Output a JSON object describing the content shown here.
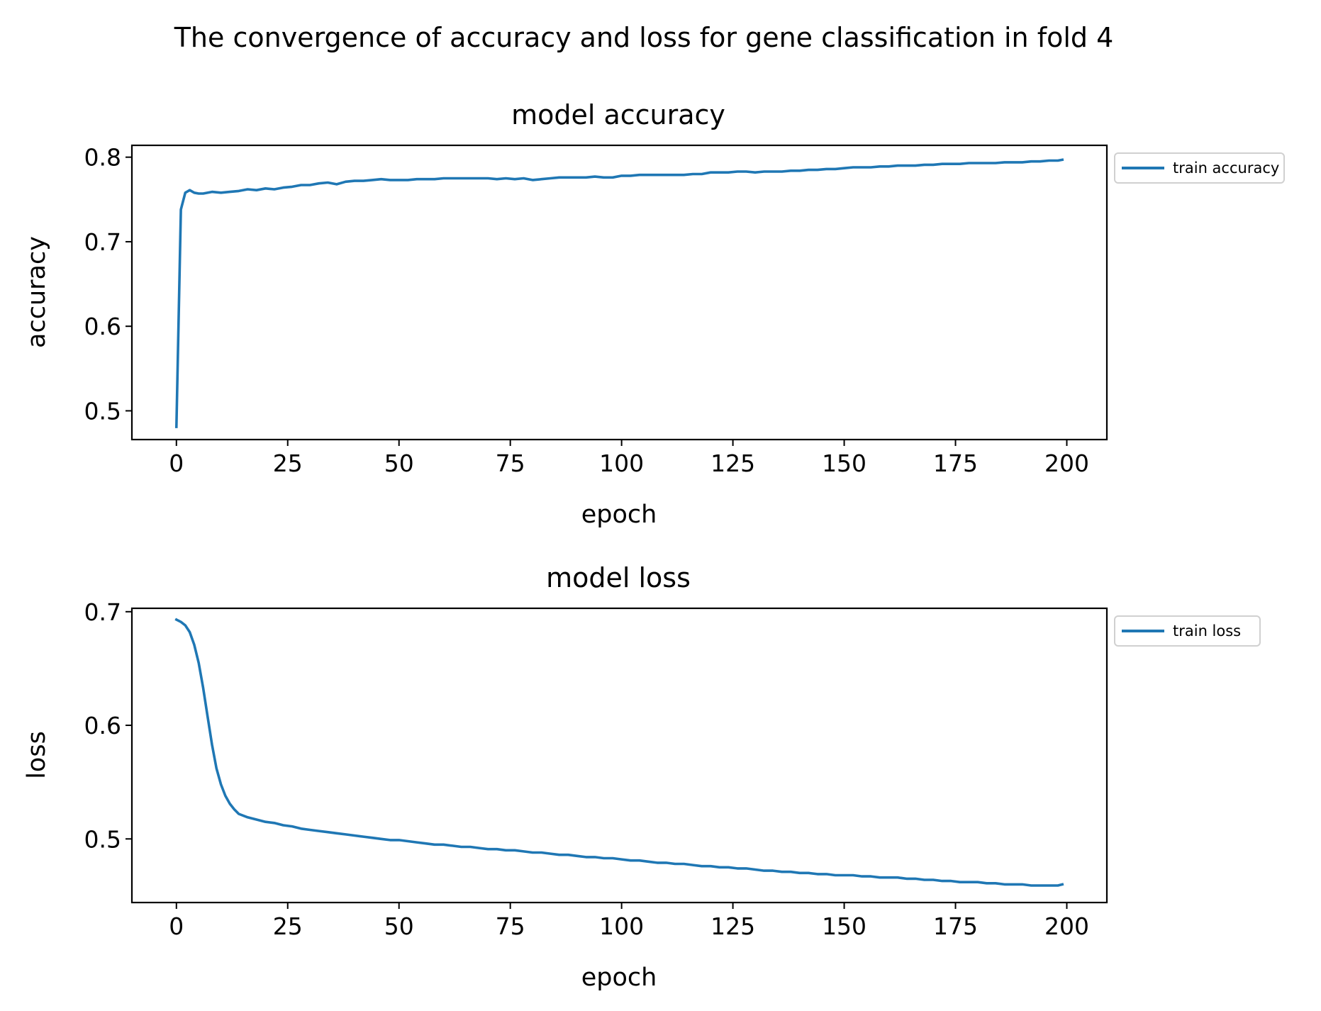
{
  "figure": {
    "suptitle": "The convergence of accuracy and loss for gene classification in fold 4"
  },
  "chart_data": [
    {
      "type": "line",
      "title": "model accuracy",
      "xlabel": "epoch",
      "ylabel": "accuracy",
      "xlim": [
        -10,
        209
      ],
      "ylim": [
        0.466,
        0.814
      ],
      "xticks": [
        0,
        25,
        50,
        75,
        100,
        125,
        150,
        175,
        200
      ],
      "xtick_labels": [
        "0",
        "25",
        "50",
        "75",
        "100",
        "125",
        "150",
        "175",
        "200"
      ],
      "yticks": [
        0.5,
        0.6,
        0.7,
        0.8
      ],
      "ytick_labels": [
        "0.5",
        "0.6",
        "0.7",
        "0.8"
      ],
      "grid": false,
      "legend": "upper-right-outside",
      "series": [
        {
          "name": "train accuracy",
          "color": "#1f77b4",
          "x": [
            0,
            1,
            2,
            3,
            4,
            5,
            6,
            8,
            10,
            12,
            14,
            16,
            18,
            20,
            22,
            24,
            26,
            28,
            30,
            32,
            34,
            36,
            38,
            40,
            42,
            44,
            46,
            48,
            50,
            52,
            54,
            56,
            58,
            60,
            62,
            64,
            66,
            68,
            70,
            72,
            74,
            76,
            78,
            80,
            82,
            84,
            86,
            88,
            90,
            92,
            94,
            96,
            98,
            100,
            102,
            104,
            106,
            108,
            110,
            112,
            114,
            116,
            118,
            120,
            122,
            124,
            126,
            128,
            130,
            132,
            134,
            136,
            138,
            140,
            142,
            144,
            146,
            148,
            150,
            152,
            154,
            156,
            158,
            160,
            162,
            164,
            166,
            168,
            170,
            172,
            174,
            176,
            178,
            180,
            182,
            184,
            186,
            188,
            190,
            192,
            194,
            196,
            198,
            199
          ],
          "y": [
            0.481,
            0.738,
            0.758,
            0.761,
            0.758,
            0.757,
            0.757,
            0.759,
            0.758,
            0.759,
            0.76,
            0.762,
            0.761,
            0.763,
            0.762,
            0.764,
            0.765,
            0.767,
            0.767,
            0.769,
            0.77,
            0.768,
            0.771,
            0.772,
            0.772,
            0.773,
            0.774,
            0.773,
            0.773,
            0.773,
            0.774,
            0.774,
            0.774,
            0.775,
            0.775,
            0.775,
            0.775,
            0.775,
            0.775,
            0.774,
            0.775,
            0.774,
            0.775,
            0.773,
            0.774,
            0.775,
            0.776,
            0.776,
            0.776,
            0.776,
            0.777,
            0.776,
            0.776,
            0.778,
            0.778,
            0.779,
            0.779,
            0.779,
            0.779,
            0.779,
            0.779,
            0.78,
            0.78,
            0.782,
            0.782,
            0.782,
            0.783,
            0.783,
            0.782,
            0.783,
            0.783,
            0.783,
            0.784,
            0.784,
            0.785,
            0.785,
            0.786,
            0.786,
            0.787,
            0.788,
            0.788,
            0.788,
            0.789,
            0.789,
            0.79,
            0.79,
            0.79,
            0.791,
            0.791,
            0.792,
            0.792,
            0.792,
            0.793,
            0.793,
            0.793,
            0.793,
            0.794,
            0.794,
            0.794,
            0.795,
            0.795,
            0.796,
            0.796,
            0.797
          ]
        }
      ]
    },
    {
      "type": "line",
      "title": "model loss",
      "xlabel": "epoch",
      "ylabel": "loss",
      "xlim": [
        -10,
        209
      ],
      "ylim": [
        0.444,
        0.703
      ],
      "xticks": [
        0,
        25,
        50,
        75,
        100,
        125,
        150,
        175,
        200
      ],
      "xtick_labels": [
        "0",
        "25",
        "50",
        "75",
        "100",
        "125",
        "150",
        "175",
        "200"
      ],
      "yticks": [
        0.5,
        0.6,
        0.7
      ],
      "ytick_labels": [
        "0.5",
        "0.6",
        "0.7"
      ],
      "grid": false,
      "legend": "upper-right-outside",
      "series": [
        {
          "name": "train loss",
          "color": "#1f77b4",
          "x": [
            0,
            1,
            2,
            3,
            4,
            5,
            6,
            7,
            8,
            9,
            10,
            11,
            12,
            13,
            14,
            16,
            18,
            20,
            22,
            24,
            26,
            28,
            30,
            32,
            34,
            36,
            38,
            40,
            42,
            44,
            46,
            48,
            50,
            52,
            54,
            56,
            58,
            60,
            62,
            64,
            66,
            68,
            70,
            72,
            74,
            76,
            78,
            80,
            82,
            84,
            86,
            88,
            90,
            92,
            94,
            96,
            98,
            100,
            102,
            104,
            106,
            108,
            110,
            112,
            114,
            116,
            118,
            120,
            122,
            124,
            126,
            128,
            130,
            132,
            134,
            136,
            138,
            140,
            142,
            144,
            146,
            148,
            150,
            152,
            154,
            156,
            158,
            160,
            162,
            164,
            166,
            168,
            170,
            172,
            174,
            176,
            178,
            180,
            182,
            184,
            186,
            188,
            190,
            192,
            194,
            196,
            198,
            199
          ],
          "y": [
            0.693,
            0.691,
            0.688,
            0.682,
            0.671,
            0.655,
            0.633,
            0.608,
            0.583,
            0.562,
            0.548,
            0.538,
            0.531,
            0.526,
            0.522,
            0.519,
            0.517,
            0.515,
            0.514,
            0.512,
            0.511,
            0.509,
            0.508,
            0.507,
            0.506,
            0.505,
            0.504,
            0.503,
            0.502,
            0.501,
            0.5,
            0.499,
            0.499,
            0.498,
            0.497,
            0.496,
            0.495,
            0.495,
            0.494,
            0.493,
            0.493,
            0.492,
            0.491,
            0.491,
            0.49,
            0.49,
            0.489,
            0.488,
            0.488,
            0.487,
            0.486,
            0.486,
            0.485,
            0.484,
            0.484,
            0.483,
            0.483,
            0.482,
            0.481,
            0.481,
            0.48,
            0.479,
            0.479,
            0.478,
            0.478,
            0.477,
            0.476,
            0.476,
            0.475,
            0.475,
            0.474,
            0.474,
            0.473,
            0.472,
            0.472,
            0.471,
            0.471,
            0.47,
            0.47,
            0.469,
            0.469,
            0.468,
            0.468,
            0.468,
            0.467,
            0.467,
            0.466,
            0.466,
            0.466,
            0.465,
            0.465,
            0.464,
            0.464,
            0.463,
            0.463,
            0.462,
            0.462,
            0.462,
            0.461,
            0.461,
            0.46,
            0.46,
            0.46,
            0.459,
            0.459,
            0.459,
            0.459,
            0.46
          ]
        }
      ]
    }
  ]
}
